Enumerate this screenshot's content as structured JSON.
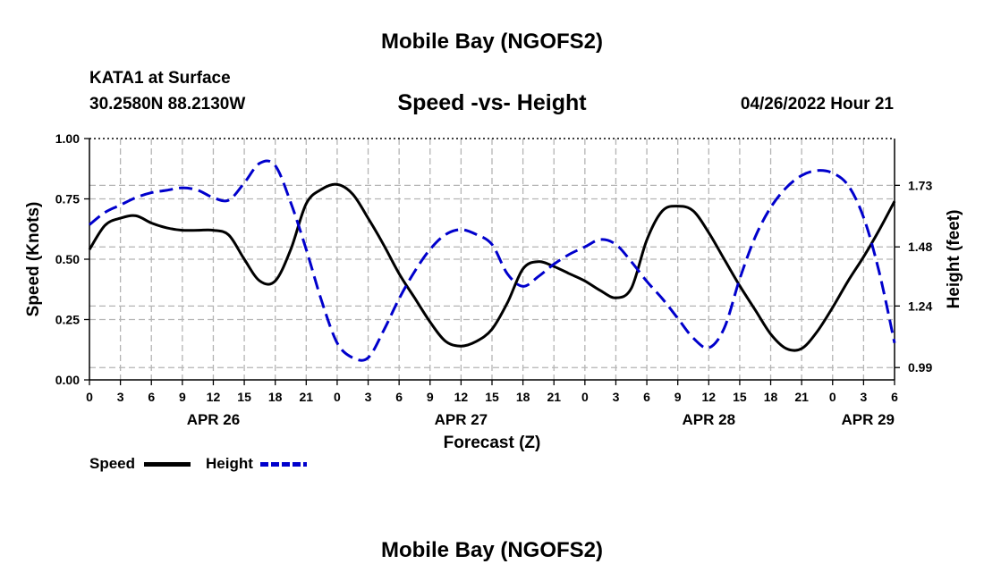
{
  "header": {
    "title": "Mobile Bay (NGOFS2)",
    "station": "KATA1 at Surface",
    "coords": "30.2580N  88.2130W",
    "subtitle": "Speed -vs- Height",
    "datetime": "04/26/2022 Hour 21"
  },
  "legend": {
    "speed_label": "Speed",
    "height_label": "Height"
  },
  "footer": {
    "title": "Mobile Bay (NGOFS2)"
  },
  "colors": {
    "speed": "#000000",
    "height": "#0000cc",
    "grid": "#b4b4b4"
  },
  "chart_data": {
    "type": "line",
    "title": "Speed -vs- Height",
    "xlabel": "Forecast (Z)",
    "ylabel": "Speed (Knots)",
    "y2label": "Height (feet)",
    "xlim": [
      0,
      78
    ],
    "ylim": [
      0,
      1.0
    ],
    "y2lim": [
      0.94,
      1.92
    ],
    "x_ticks": [
      0,
      3,
      6,
      9,
      12,
      15,
      18,
      21,
      24,
      27,
      30,
      33,
      36,
      39,
      42,
      45,
      48,
      51,
      54,
      57,
      60,
      63,
      66,
      69,
      72,
      75,
      78
    ],
    "x_tick_labels": [
      "0",
      "3",
      "6",
      "9",
      "12",
      "15",
      "18",
      "21",
      "0",
      "3",
      "6",
      "9",
      "12",
      "15",
      "18",
      "21",
      "0",
      "3",
      "6",
      "9",
      "12",
      "15",
      "18",
      "21",
      "0",
      "3",
      "6"
    ],
    "date_labels": [
      {
        "x": 12,
        "label": "APR 26"
      },
      {
        "x": 36,
        "label": "APR 27"
      },
      {
        "x": 60,
        "label": "APR 28"
      },
      {
        "x": 78,
        "label": "APR 29"
      }
    ],
    "y_ticks": [
      0.0,
      0.25,
      0.5,
      0.75,
      1.0
    ],
    "y_tick_labels": [
      "0.00",
      "0.25",
      "0.50",
      "0.75",
      "1.00"
    ],
    "y2_ticks": [
      0.99,
      1.24,
      1.48,
      1.73
    ],
    "y2_tick_labels": [
      "0.99",
      "1.24",
      "1.48",
      "1.73"
    ],
    "grid": true,
    "series": [
      {
        "name": "Speed",
        "axis": "left",
        "style": "solid",
        "x": [
          0,
          1.5,
          3,
          4.5,
          6,
          7.5,
          9,
          10.5,
          12,
          13.5,
          15,
          16.5,
          18,
          19.5,
          21,
          22.5,
          24,
          25.5,
          27,
          28.5,
          30,
          31.5,
          33,
          34.5,
          36,
          37.5,
          39,
          40.5,
          42,
          43.5,
          45,
          46.5,
          48,
          49.5,
          51,
          52.5,
          54,
          55.5,
          57,
          58.5,
          60,
          61.5,
          63,
          64.5,
          66,
          67.5,
          69,
          70.5,
          72,
          73.5,
          75,
          76.5,
          78
        ],
        "values": [
          0.54,
          0.64,
          0.67,
          0.68,
          0.65,
          0.63,
          0.62,
          0.62,
          0.62,
          0.6,
          0.5,
          0.41,
          0.41,
          0.54,
          0.73,
          0.79,
          0.81,
          0.77,
          0.67,
          0.56,
          0.44,
          0.34,
          0.24,
          0.16,
          0.14,
          0.16,
          0.21,
          0.32,
          0.46,
          0.49,
          0.47,
          0.44,
          0.41,
          0.37,
          0.34,
          0.38,
          0.58,
          0.7,
          0.72,
          0.7,
          0.61,
          0.5,
          0.39,
          0.29,
          0.19,
          0.13,
          0.13,
          0.2,
          0.3,
          0.41,
          0.51,
          0.62,
          0.74
        ]
      },
      {
        "name": "Height",
        "axis": "right",
        "style": "dashed",
        "x": [
          0,
          1.5,
          3,
          4.5,
          6,
          7.5,
          9,
          10.5,
          12,
          13.5,
          15,
          16.5,
          18,
          19.5,
          21,
          22.5,
          24,
          25.5,
          27,
          28.5,
          30,
          31.5,
          33,
          34.5,
          36,
          37.5,
          39,
          40.5,
          42,
          43.5,
          45,
          46.5,
          48,
          49.5,
          51,
          52.5,
          54,
          55.5,
          57,
          58.5,
          60,
          61.5,
          63,
          64.5,
          66,
          67.5,
          69,
          70.5,
          72,
          73.5,
          75,
          76.5,
          78
        ],
        "values": [
          1.57,
          1.62,
          1.65,
          1.68,
          1.7,
          1.71,
          1.72,
          1.71,
          1.68,
          1.67,
          1.74,
          1.82,
          1.81,
          1.66,
          1.47,
          1.26,
          1.09,
          1.03,
          1.03,
          1.14,
          1.27,
          1.38,
          1.47,
          1.53,
          1.55,
          1.53,
          1.49,
          1.37,
          1.32,
          1.36,
          1.41,
          1.45,
          1.48,
          1.51,
          1.49,
          1.42,
          1.34,
          1.27,
          1.19,
          1.11,
          1.07,
          1.15,
          1.35,
          1.52,
          1.64,
          1.72,
          1.77,
          1.79,
          1.78,
          1.73,
          1.6,
          1.38,
          1.09
        ]
      }
    ]
  }
}
